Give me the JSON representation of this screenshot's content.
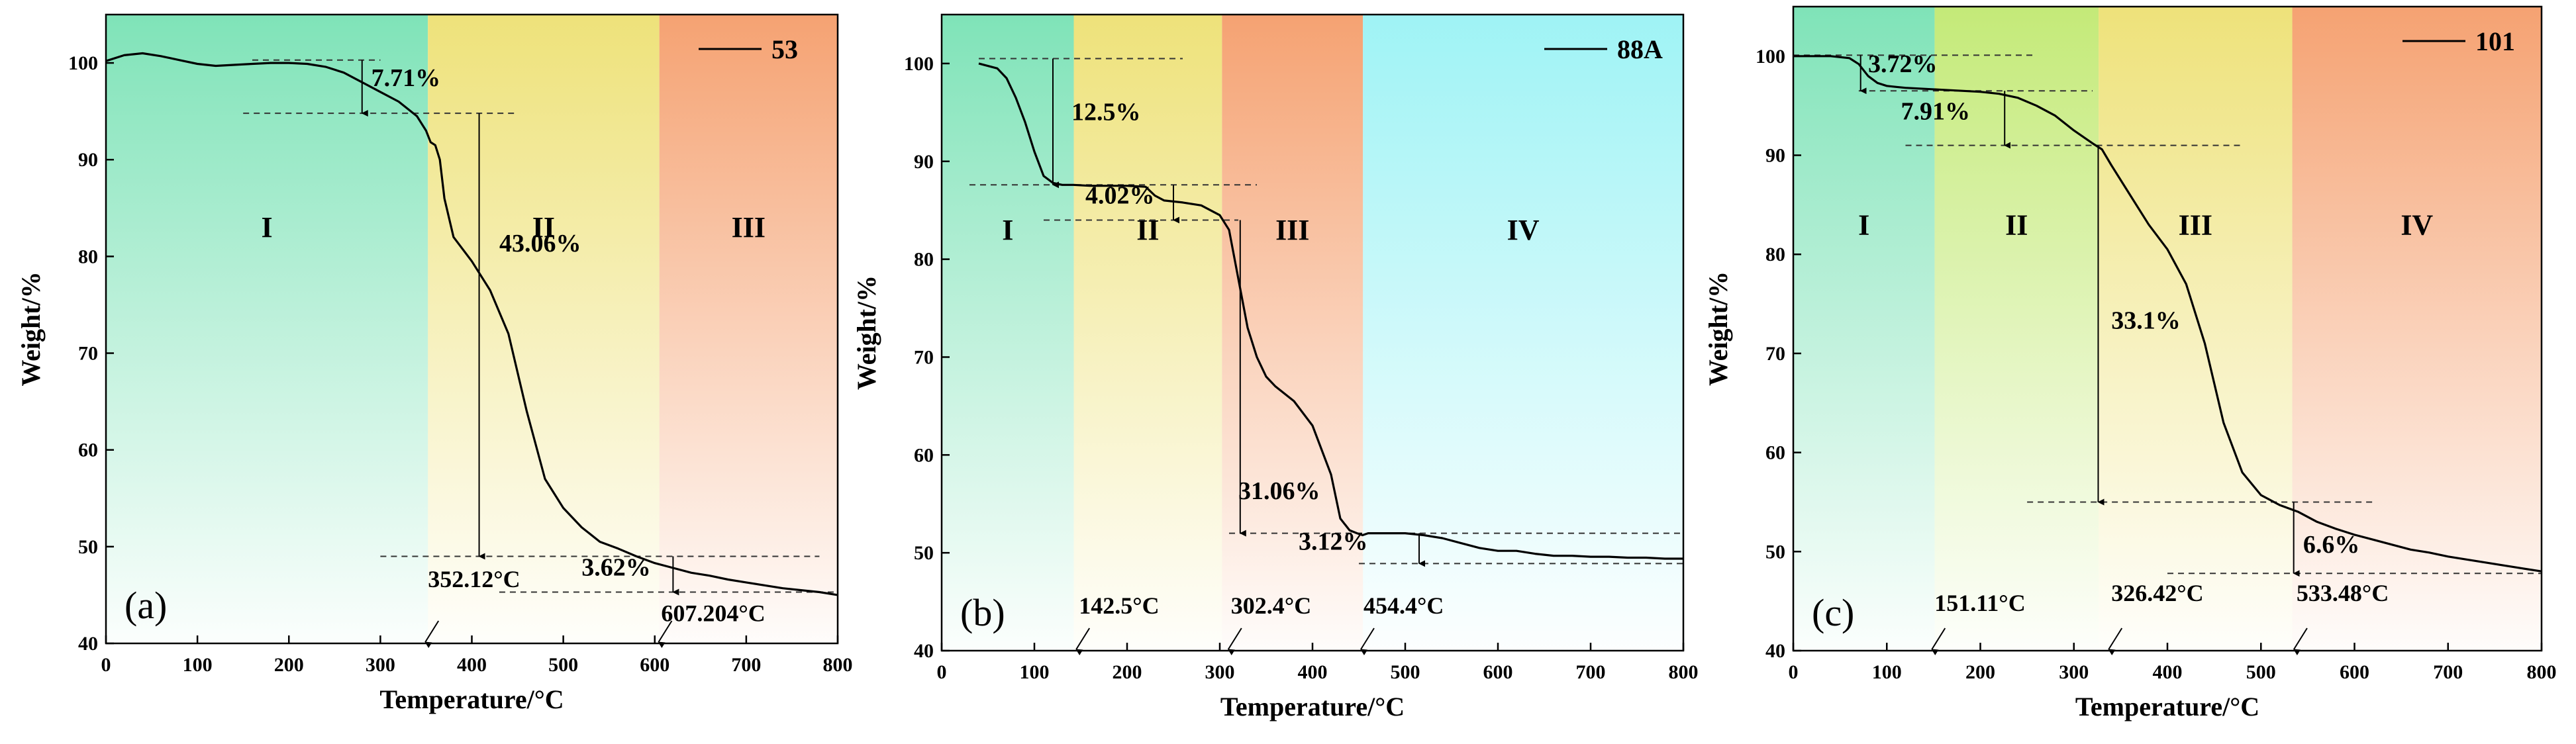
{
  "chart_data": [
    {
      "type": "line",
      "panel_label": "(a)",
      "legend": "53",
      "xlabel": "Temperature/°C",
      "ylabel": "Weight/%",
      "xlim": [
        0,
        800
      ],
      "ylim": [
        40,
        105
      ],
      "xticks": [
        0,
        100,
        200,
        300,
        400,
        500,
        600,
        700,
        800
      ],
      "yticks": [
        40,
        50,
        60,
        70,
        80,
        90,
        100
      ],
      "regions": [
        {
          "label": "I",
          "x0": 0,
          "x1": 352,
          "color": "#7fe3b8"
        },
        {
          "label": "II",
          "x0": 352,
          "x1": 605,
          "color": "#eee27a"
        },
        {
          "label": "III",
          "x0": 605,
          "x1": 800,
          "color": "#f5a272"
        }
      ],
      "region_label_y": 82,
      "series": [
        {
          "name": "53",
          "x": [
            0,
            20,
            40,
            60,
            80,
            100,
            120,
            140,
            160,
            180,
            200,
            220,
            240,
            260,
            280,
            300,
            320,
            340,
            350,
            355,
            360,
            365,
            370,
            380,
            400,
            420,
            440,
            460,
            480,
            500,
            520,
            540,
            560,
            580,
            600,
            620,
            640,
            660,
            680,
            700,
            720,
            740,
            760,
            780,
            800
          ],
          "y": [
            100.2,
            100.8,
            101.0,
            100.7,
            100.3,
            99.9,
            99.7,
            99.8,
            99.9,
            100.0,
            100.0,
            99.9,
            99.6,
            99.0,
            98.0,
            97.0,
            96.0,
            94.5,
            93.0,
            91.8,
            91.5,
            90.0,
            86.0,
            82.0,
            79.5,
            76.5,
            72.0,
            64.0,
            57.0,
            54.0,
            52.0,
            50.5,
            49.8,
            49.0,
            48.3,
            47.8,
            47.3,
            47.0,
            46.6,
            46.3,
            46.0,
            45.7,
            45.5,
            45.3,
            45.0
          ]
        }
      ],
      "levels": [
        {
          "y": 100.3,
          "x0": 160,
          "x1": 300
        },
        {
          "y": 94.8,
          "x0": 150,
          "x1": 450
        },
        {
          "y": 49.0,
          "x0": 300,
          "x1": 780
        },
        {
          "y": 45.3,
          "x0": 430,
          "x1": 800
        }
      ],
      "arrows": [
        {
          "x": 280,
          "y0": 100.3,
          "y1": 94.8
        },
        {
          "x": 408,
          "y0": 94.8,
          "y1": 49.0
        },
        {
          "x": 620,
          "y0": 49.0,
          "y1": 45.3
        }
      ],
      "annotations": [
        {
          "text": "7.71%",
          "x": 290,
          "y": 97.6
        },
        {
          "text": "43.06%",
          "x": 430,
          "y": 80.5
        },
        {
          "text": "3.62%",
          "x": 520,
          "y": 47.0
        }
      ],
      "temps": [
        {
          "text": "352.12°C",
          "x": 352,
          "ty": 45.8
        },
        {
          "text": "607.204°C",
          "x": 607,
          "ty": 42.3
        }
      ]
    },
    {
      "type": "line",
      "panel_label": "(b)",
      "legend": "88A",
      "xlabel": "Temperature/°C",
      "ylabel": "Weight/%",
      "xlim": [
        0,
        800
      ],
      "ylim": [
        40,
        105
      ],
      "xticks": [
        0,
        100,
        200,
        300,
        400,
        500,
        600,
        700,
        800
      ],
      "yticks": [
        40,
        50,
        60,
        70,
        80,
        90,
        100
      ],
      "regions": [
        {
          "label": "I",
          "x0": 0,
          "x1": 142.5,
          "color": "#7fe3b8"
        },
        {
          "label": "II",
          "x0": 142.5,
          "x1": 302.4,
          "color": "#eee27a"
        },
        {
          "label": "III",
          "x0": 302.4,
          "x1": 454.4,
          "color": "#f5a272"
        },
        {
          "label": "IV",
          "x0": 454.4,
          "x1": 800,
          "color": "#9ff3f5"
        }
      ],
      "region_label_y": 82,
      "series": [
        {
          "name": "88A",
          "x": [
            40,
            60,
            70,
            80,
            90,
            100,
            110,
            120,
            130,
            142,
            160,
            180,
            200,
            220,
            230,
            240,
            260,
            280,
            300,
            310,
            320,
            330,
            340,
            350,
            360,
            380,
            400,
            420,
            430,
            440,
            448,
            454,
            460,
            480,
            500,
            520,
            540,
            560,
            580,
            600,
            620,
            640,
            660,
            680,
            700,
            720,
            740,
            760,
            780,
            800
          ],
          "y": [
            100.0,
            99.5,
            98.5,
            96.5,
            94.0,
            91.0,
            88.5,
            87.8,
            87.6,
            87.6,
            87.5,
            87.5,
            87.5,
            87.4,
            86.5,
            86.0,
            85.8,
            85.5,
            84.5,
            83.0,
            78.0,
            73.0,
            70.0,
            68.0,
            67.0,
            65.5,
            63.0,
            58.0,
            53.5,
            52.3,
            52.0,
            51.8,
            52.0,
            52.0,
            52.0,
            51.8,
            51.5,
            51.0,
            50.5,
            50.2,
            50.2,
            49.9,
            49.7,
            49.7,
            49.6,
            49.6,
            49.5,
            49.5,
            49.4,
            49.4
          ]
        }
      ],
      "levels": [
        {
          "y": 100.5,
          "x0": 40,
          "x1": 260
        },
        {
          "y": 87.6,
          "x0": 30,
          "x1": 340
        },
        {
          "y": 84.0,
          "x0": 110,
          "x1": 320
        },
        {
          "y": 52.0,
          "x0": 310,
          "x1": 800
        },
        {
          "y": 48.9,
          "x0": 450,
          "x1": 800
        }
      ],
      "arrows": [
        {
          "x": 120,
          "y0": 100.5,
          "y1": 87.6
        },
        {
          "x": 250,
          "y0": 87.6,
          "y1": 84.0
        },
        {
          "x": 322,
          "y0": 84.0,
          "y1": 52.0
        },
        {
          "x": 515,
          "y0": 52.0,
          "y1": 48.9
        }
      ],
      "annotations": [
        {
          "text": "12.5%",
          "x": 140,
          "y": 94.2
        },
        {
          "text": "4.02%",
          "x": 155,
          "y": 85.7
        },
        {
          "text": "31.06%",
          "x": 320,
          "y": 55.5
        },
        {
          "text": "3.12%",
          "x": 385,
          "y": 50.3
        }
      ],
      "temps": [
        {
          "text": "142.5°C",
          "x": 148,
          "ty": 43.8
        },
        {
          "text": "302.4°C",
          "x": 312,
          "ty": 43.8
        },
        {
          "text": "454.4°C",
          "x": 455,
          "ty": 43.8
        }
      ]
    },
    {
      "type": "line",
      "panel_label": "(c)",
      "legend": "101",
      "xlabel": "Temperature/°C",
      "ylabel": "Weight/%",
      "xlim": [
        0,
        800
      ],
      "ylim": [
        40,
        105
      ],
      "xticks": [
        0,
        100,
        200,
        300,
        400,
        500,
        600,
        700,
        800
      ],
      "yticks": [
        40,
        50,
        60,
        70,
        80,
        90,
        100
      ],
      "regions": [
        {
          "label": "I",
          "x0": 0,
          "x1": 151.11,
          "color": "#7fe3b8"
        },
        {
          "label": "II",
          "x0": 151.11,
          "x1": 326.42,
          "color": "#c4ea78"
        },
        {
          "label": "III",
          "x0": 326.42,
          "x1": 533.48,
          "color": "#eee27a"
        },
        {
          "label": "IV",
          "x0": 533.48,
          "x1": 800,
          "color": "#f5a272"
        }
      ],
      "region_label_y": 82,
      "series": [
        {
          "name": "101",
          "x": [
            0,
            20,
            40,
            60,
            70,
            80,
            90,
            100,
            110,
            120,
            140,
            160,
            180,
            200,
            220,
            240,
            260,
            280,
            300,
            320,
            330,
            340,
            360,
            380,
            400,
            420,
            440,
            460,
            480,
            500,
            520,
            540,
            560,
            580,
            600,
            620,
            640,
            660,
            680,
            700,
            720,
            740,
            760,
            780,
            800
          ],
          "y": [
            100.0,
            100.0,
            100.0,
            99.8,
            99.2,
            98.0,
            97.3,
            97.0,
            96.9,
            96.8,
            96.7,
            96.6,
            96.5,
            96.4,
            96.2,
            95.8,
            95.0,
            94.0,
            92.5,
            91.2,
            90.6,
            89.0,
            86.0,
            83.0,
            80.5,
            77.0,
            71.0,
            63.0,
            58.0,
            55.7,
            54.7,
            54.0,
            53.0,
            52.3,
            51.7,
            51.2,
            50.7,
            50.2,
            49.9,
            49.5,
            49.2,
            48.9,
            48.6,
            48.3,
            48.0
          ]
        }
      ],
      "levels": [
        {
          "y": 100.1,
          "x0": 0,
          "x1": 260
        },
        {
          "y": 96.5,
          "x0": 70,
          "x1": 320
        },
        {
          "y": 91.0,
          "x0": 120,
          "x1": 480
        },
        {
          "y": 55.0,
          "x0": 250,
          "x1": 620
        },
        {
          "y": 47.8,
          "x0": 400,
          "x1": 800
        }
      ],
      "arrows": [
        {
          "x": 72,
          "y0": 100.1,
          "y1": 96.5
        },
        {
          "x": 226,
          "y0": 96.5,
          "y1": 91.0
        },
        {
          "x": 326,
          "y0": 91.0,
          "y1": 55.0
        },
        {
          "x": 535,
          "y0": 55.0,
          "y1": 47.8
        }
      ],
      "annotations": [
        {
          "text": "3.72%",
          "x": 80,
          "y": 98.4
        },
        {
          "text": "7.91%",
          "x": 115,
          "y": 93.6
        },
        {
          "text": "33.1%",
          "x": 340,
          "y": 72.5
        },
        {
          "text": "6.6%",
          "x": 545,
          "y": 49.9
        }
      ],
      "temps": [
        {
          "text": "151.11°C",
          "x": 151,
          "ty": 44.0
        },
        {
          "text": "326.42°C",
          "x": 340,
          "ty": 45.0
        },
        {
          "text": "533.48°C",
          "x": 538,
          "ty": 45.0
        }
      ]
    }
  ]
}
